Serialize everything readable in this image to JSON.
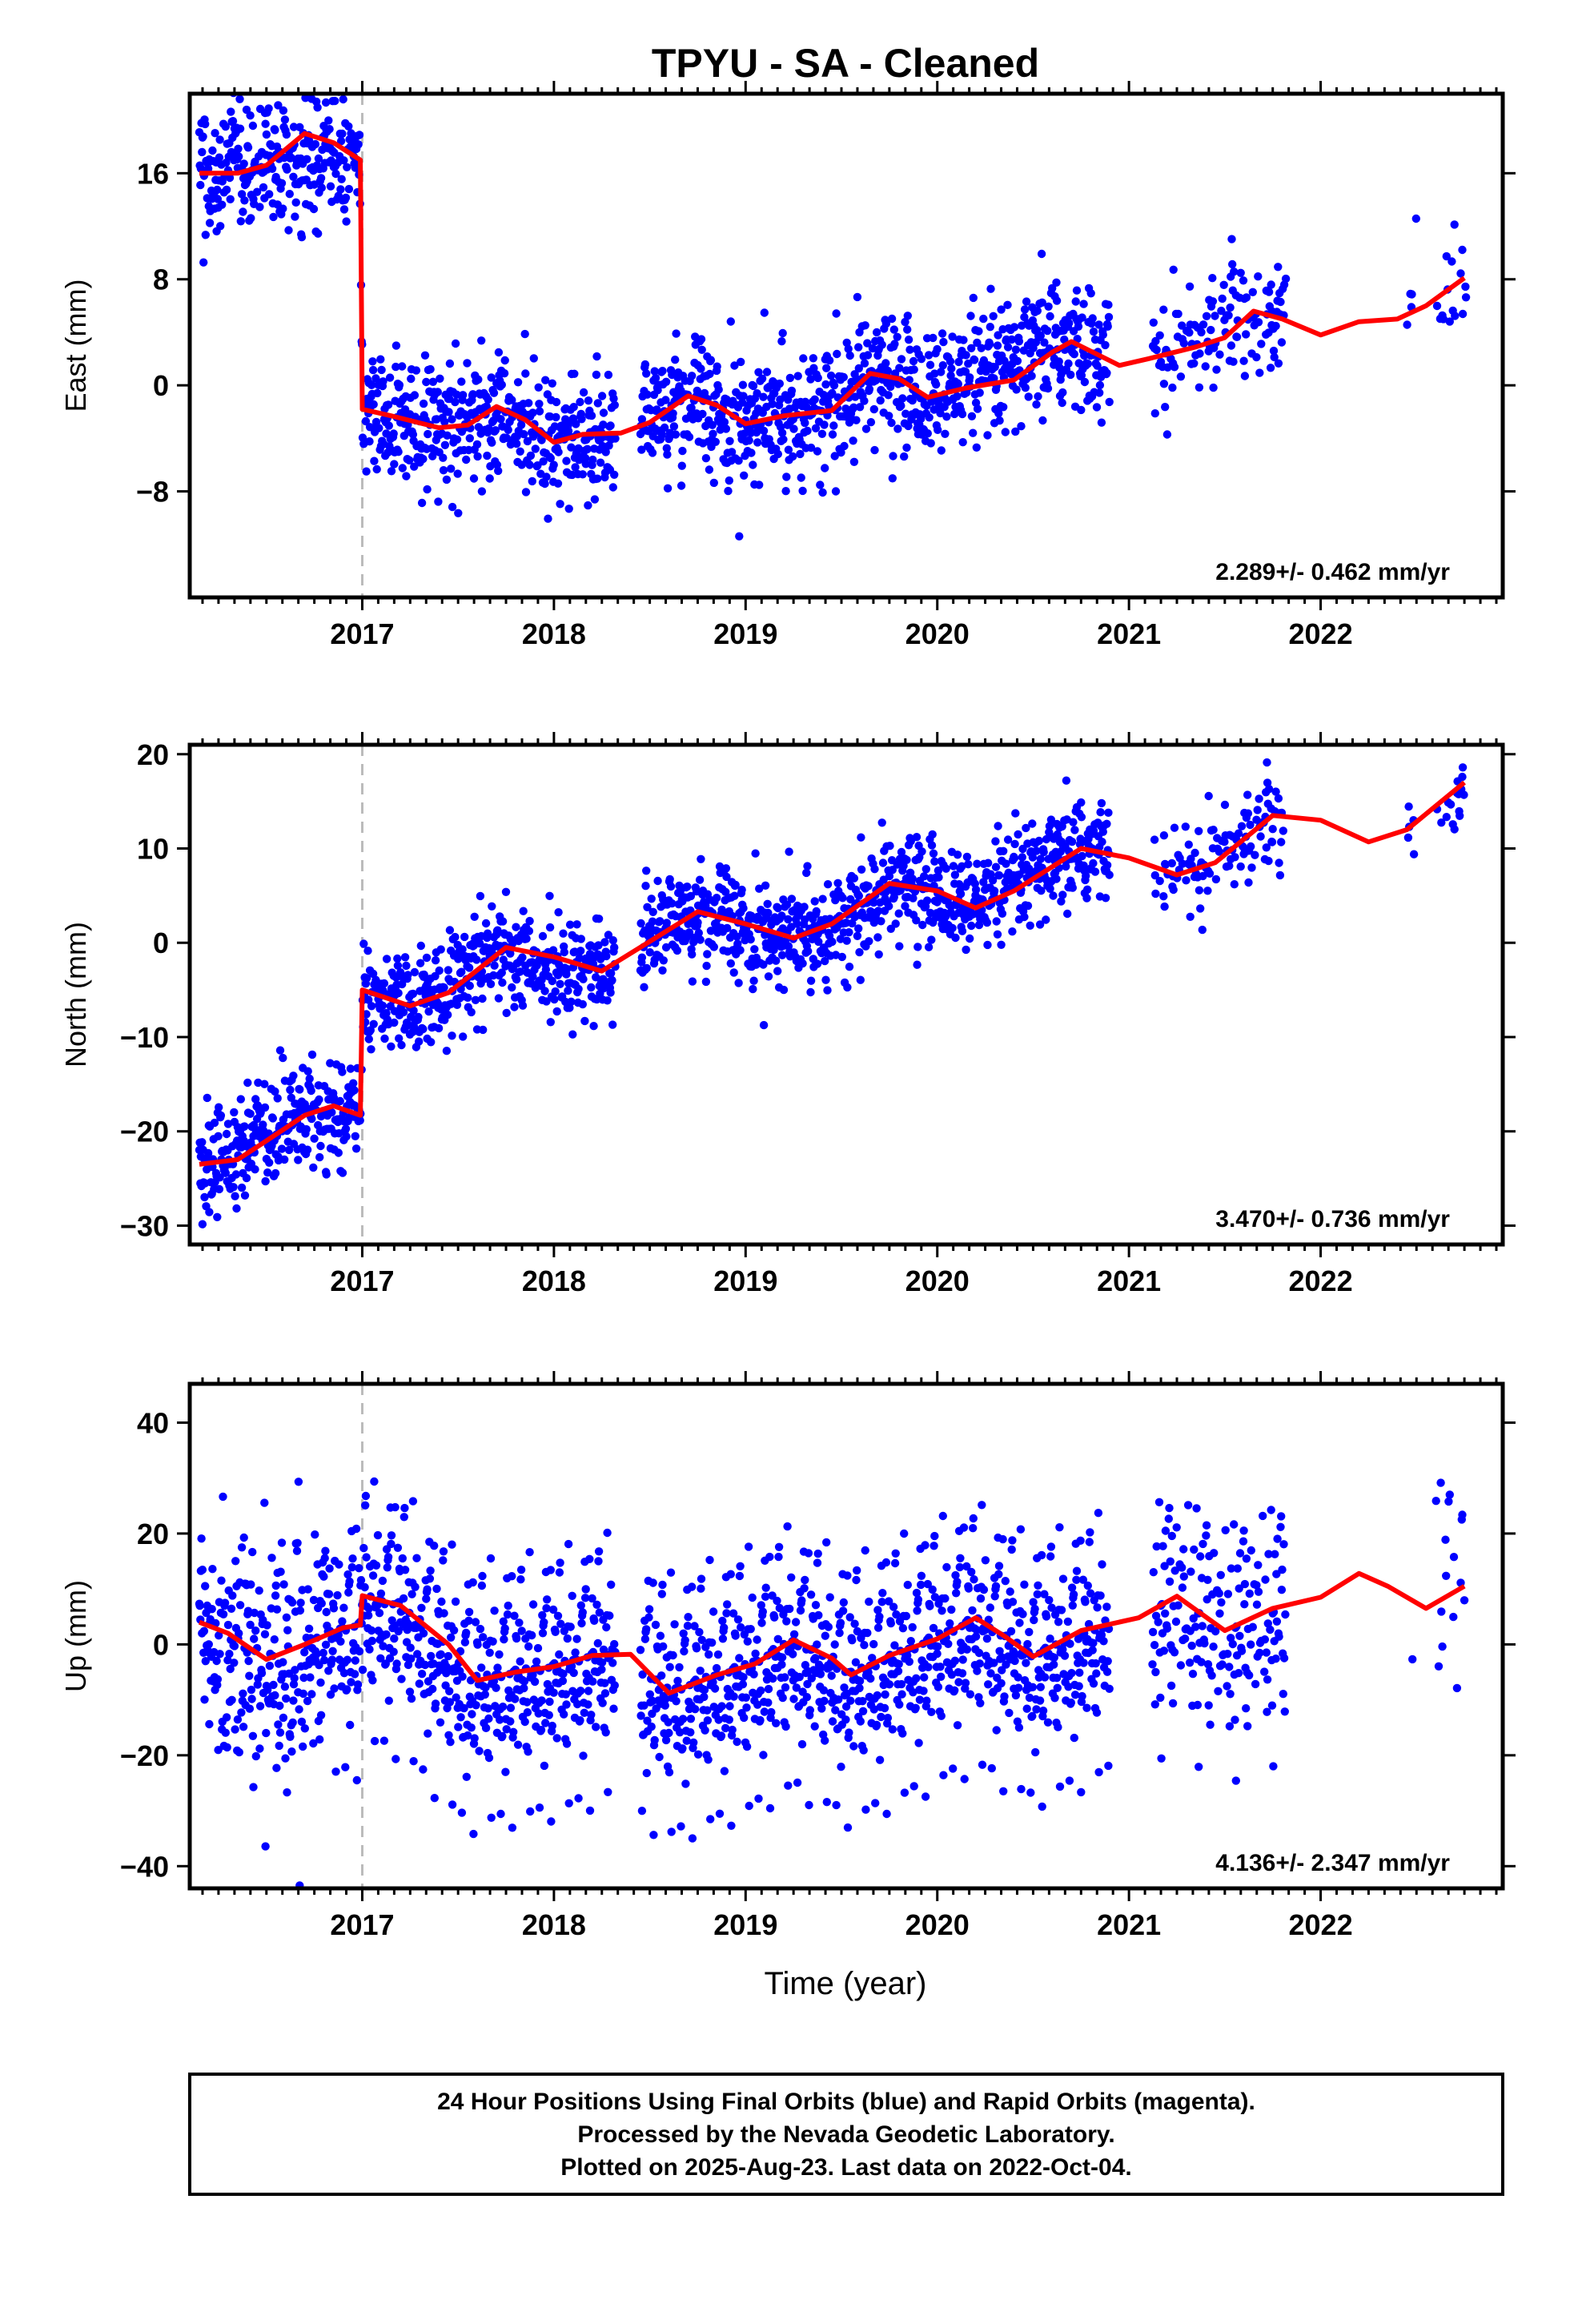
{
  "title": "TPYU  - SA - Cleaned",
  "x_axis_label": "Time (year)",
  "footer": {
    "line1": "24 Hour Positions Using Final Orbits (blue) and Rapid Orbits (magenta).",
    "line2": "Processed by the Nevada Geodetic Laboratory.",
    "line3": "Plotted on 2025-Aug-23. Last data on 2022-Oct-04."
  },
  "colors": {
    "final_orbit_points": "#0000ff",
    "model_fit": "#ff0000",
    "offset_marker": "#bbbbbb",
    "frame": "#000000"
  },
  "chart_data": [
    {
      "type": "scatter",
      "component": "East",
      "ylabel": "East (mm)",
      "xlim": [
        2016.1,
        2022.95
      ],
      "ylim": [
        -16,
        22
      ],
      "xticks": [
        2017,
        2018,
        2019,
        2020,
        2021,
        2022
      ],
      "yticks": [
        -8,
        0,
        8,
        16
      ],
      "grid": false,
      "rate_label": "2.289+/- 0.462 mm/yr",
      "offset_epoch": 2017.0,
      "series": [
        {
          "kind": "daily_positions",
          "mean_trend": [
            [
              2016.15,
              16.0
            ],
            [
              2016.5,
              16.7
            ],
            [
              2016.99,
              17.5
            ],
            [
              2017.0,
              -2.0
            ],
            [
              2017.5,
              -3.2
            ],
            [
              2017.75,
              -1.8
            ],
            [
              2018.0,
              -4.0
            ],
            [
              2018.3,
              -3.5
            ],
            [
              2018.5,
              -2.5
            ],
            [
              2018.7,
              -1.0
            ],
            [
              2019.0,
              -2.8
            ],
            [
              2019.5,
              -1.5
            ],
            [
              2019.7,
              1.0
            ],
            [
              2019.95,
              -0.8
            ],
            [
              2020.3,
              0.5
            ],
            [
              2020.65,
              3.2
            ],
            [
              2020.95,
              1.5
            ],
            [
              2021.3,
              3.0
            ],
            [
              2021.65,
              5.6
            ],
            [
              2021.95,
              3.8
            ],
            [
              2022.3,
              5.0
            ],
            [
              2022.75,
              8.2
            ]
          ],
          "scatter_sigma": 2.4
        },
        {
          "kind": "model_fit",
          "points": [
            [
              2016.15,
              16.0
            ],
            [
              2016.35,
              16.0
            ],
            [
              2016.5,
              16.6
            ],
            [
              2016.7,
              19.0
            ],
            [
              2016.85,
              18.3
            ],
            [
              2016.99,
              17.0
            ],
            [
              2017.0,
              -1.8
            ],
            [
              2017.15,
              -2.3
            ],
            [
              2017.4,
              -3.2
            ],
            [
              2017.55,
              -3.0
            ],
            [
              2017.7,
              -1.6
            ],
            [
              2017.85,
              -2.6
            ],
            [
              2018.0,
              -4.3
            ],
            [
              2018.15,
              -3.7
            ],
            [
              2018.35,
              -3.6
            ],
            [
              2018.5,
              -2.8
            ],
            [
              2018.7,
              -0.8
            ],
            [
              2018.85,
              -1.5
            ],
            [
              2019.0,
              -2.9
            ],
            [
              2019.2,
              -2.3
            ],
            [
              2019.45,
              -1.9
            ],
            [
              2019.65,
              0.9
            ],
            [
              2019.8,
              0.5
            ],
            [
              2019.95,
              -0.9
            ],
            [
              2020.15,
              -0.2
            ],
            [
              2020.4,
              0.4
            ],
            [
              2020.6,
              2.5
            ],
            [
              2020.7,
              3.3
            ],
            [
              2020.95,
              1.5
            ],
            [
              2021.1,
              2.0
            ],
            [
              2021.35,
              2.9
            ],
            [
              2021.5,
              3.6
            ],
            [
              2021.65,
              5.6
            ],
            [
              2021.8,
              5.0
            ],
            [
              2022.0,
              3.8
            ],
            [
              2022.2,
              4.8
            ],
            [
              2022.4,
              5.0
            ],
            [
              2022.55,
              6.0
            ],
            [
              2022.75,
              8.1
            ]
          ]
        }
      ]
    },
    {
      "type": "scatter",
      "component": "North",
      "ylabel": "North (mm)",
      "xlim": [
        2016.1,
        2022.95
      ],
      "ylim": [
        -32,
        21
      ],
      "xticks": [
        2017,
        2018,
        2019,
        2020,
        2021,
        2022
      ],
      "yticks": [
        -30,
        -20,
        -10,
        0,
        10,
        20
      ],
      "grid": false,
      "rate_label": "3.470+/- 0.736 mm/yr",
      "offset_epoch": 2017.0,
      "series": [
        {
          "kind": "daily_positions",
          "mean_trend": [
            [
              2016.15,
              -23.5
            ],
            [
              2016.4,
              -22.0
            ],
            [
              2016.7,
              -18.0
            ],
            [
              2016.99,
              -18.0
            ],
            [
              2017.0,
              -5.5
            ],
            [
              2017.3,
              -6.5
            ],
            [
              2017.7,
              -1.0
            ],
            [
              2018.0,
              -2.5
            ],
            [
              2018.3,
              -2.8
            ],
            [
              2018.5,
              1.5
            ],
            [
              2018.8,
              3.0
            ],
            [
              2019.2,
              0.5
            ],
            [
              2019.5,
              2.0
            ],
            [
              2019.85,
              6.5
            ],
            [
              2020.2,
              3.8
            ],
            [
              2020.5,
              7.0
            ],
            [
              2020.8,
              10.0
            ],
            [
              2021.0,
              9.5
            ],
            [
              2021.3,
              7.5
            ],
            [
              2021.7,
              12.0
            ],
            [
              2022.0,
              13.0
            ],
            [
              2022.3,
              10.5
            ],
            [
              2022.75,
              17.0
            ]
          ],
          "scatter_sigma": 2.7
        },
        {
          "kind": "model_fit",
          "points": [
            [
              2016.15,
              -23.5
            ],
            [
              2016.35,
              -23.0
            ],
            [
              2016.5,
              -21.0
            ],
            [
              2016.7,
              -18.3
            ],
            [
              2016.85,
              -17.3
            ],
            [
              2016.99,
              -18.3
            ],
            [
              2017.0,
              -5.0
            ],
            [
              2017.25,
              -6.7
            ],
            [
              2017.45,
              -5.3
            ],
            [
              2017.75,
              -0.5
            ],
            [
              2018.0,
              -1.5
            ],
            [
              2018.25,
              -3.0
            ],
            [
              2018.45,
              -0.5
            ],
            [
              2018.75,
              3.3
            ],
            [
              2019.0,
              2.0
            ],
            [
              2019.25,
              0.5
            ],
            [
              2019.45,
              2.0
            ],
            [
              2019.75,
              6.3
            ],
            [
              2020.0,
              5.5
            ],
            [
              2020.2,
              3.7
            ],
            [
              2020.4,
              5.5
            ],
            [
              2020.75,
              10.0
            ],
            [
              2021.0,
              9.0
            ],
            [
              2021.25,
              7.2
            ],
            [
              2021.45,
              8.5
            ],
            [
              2021.75,
              13.5
            ],
            [
              2022.0,
              13.0
            ],
            [
              2022.25,
              10.7
            ],
            [
              2022.45,
              12.0
            ],
            [
              2022.75,
              17.0
            ]
          ]
        }
      ]
    },
    {
      "type": "scatter",
      "component": "Up",
      "ylabel": "Up (mm)",
      "xlim": [
        2016.1,
        2022.95
      ],
      "ylim": [
        -44,
        47
      ],
      "xticks": [
        2017,
        2018,
        2019,
        2020,
        2021,
        2022
      ],
      "yticks": [
        -40,
        -20,
        0,
        20,
        40
      ],
      "grid": false,
      "rate_label": "4.136+/- 2.347 mm/yr",
      "offset_epoch": 2017.0,
      "series": [
        {
          "kind": "daily_positions",
          "mean_trend": [
            [
              2016.15,
              4.0
            ],
            [
              2016.5,
              -2.5
            ],
            [
              2016.8,
              2.0
            ],
            [
              2016.99,
              3.5
            ],
            [
              2017.0,
              8.5
            ],
            [
              2017.2,
              7.0
            ],
            [
              2017.55,
              -6.5
            ],
            [
              2018.0,
              -4.0
            ],
            [
              2018.3,
              -1.0
            ],
            [
              2018.6,
              -8.5
            ],
            [
              2019.0,
              -4.0
            ],
            [
              2019.25,
              0.5
            ],
            [
              2019.55,
              -5.5
            ],
            [
              2019.85,
              -1.0
            ],
            [
              2020.2,
              4.5
            ],
            [
              2020.5,
              -2.0
            ],
            [
              2020.85,
              2.5
            ],
            [
              2021.25,
              8.5
            ],
            [
              2021.5,
              2.5
            ],
            [
              2021.8,
              6.5
            ],
            [
              2022.2,
              12.5
            ],
            [
              2022.55,
              6.5
            ],
            [
              2022.75,
              10.5
            ]
          ],
          "scatter_sigma": 11.0
        },
        {
          "kind": "model_fit",
          "points": [
            [
              2016.15,
              4.0
            ],
            [
              2016.3,
              2.0
            ],
            [
              2016.5,
              -2.7
            ],
            [
              2016.7,
              0.0
            ],
            [
              2016.9,
              3.0
            ],
            [
              2016.99,
              3.5
            ],
            [
              2017.0,
              8.8
            ],
            [
              2017.2,
              7.0
            ],
            [
              2017.45,
              0.0
            ],
            [
              2017.6,
              -6.5
            ],
            [
              2017.8,
              -5.0
            ],
            [
              2018.0,
              -4.0
            ],
            [
              2018.2,
              -2.0
            ],
            [
              2018.4,
              -1.8
            ],
            [
              2018.6,
              -8.8
            ],
            [
              2018.85,
              -5.5
            ],
            [
              2019.05,
              -3.5
            ],
            [
              2019.25,
              0.8
            ],
            [
              2019.45,
              -2.5
            ],
            [
              2019.55,
              -5.5
            ],
            [
              2019.75,
              -2.0
            ],
            [
              2020.0,
              1.0
            ],
            [
              2020.2,
              4.8
            ],
            [
              2020.35,
              1.5
            ],
            [
              2020.5,
              -2.2
            ],
            [
              2020.75,
              2.5
            ],
            [
              2021.05,
              4.8
            ],
            [
              2021.25,
              8.7
            ],
            [
              2021.5,
              2.5
            ],
            [
              2021.75,
              6.5
            ],
            [
              2022.0,
              8.5
            ],
            [
              2022.2,
              12.8
            ],
            [
              2022.35,
              10.5
            ],
            [
              2022.55,
              6.5
            ],
            [
              2022.75,
              10.5
            ]
          ]
        }
      ]
    }
  ]
}
